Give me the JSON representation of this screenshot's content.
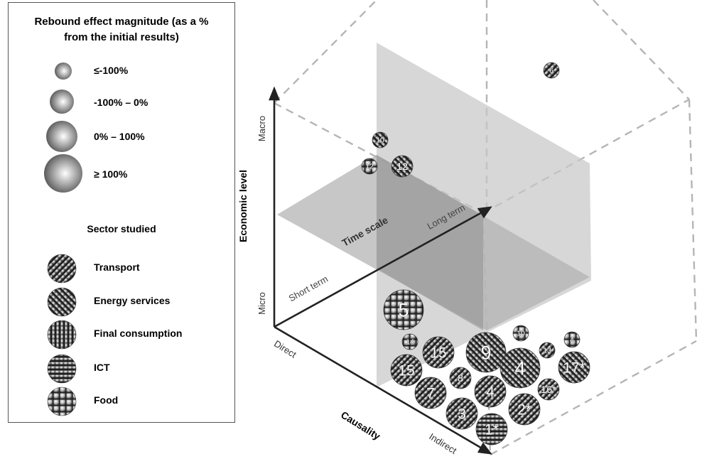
{
  "legend": {
    "title_line1": "Rebound effect  magnitude (as a %",
    "title_line2": "from the initial  results)",
    "magnitudes": [
      {
        "label": "≤-100%",
        "size": "xs"
      },
      {
        "label": "-100% – 0%",
        "size": "s"
      },
      {
        "label": "0% – 100%",
        "size": "m"
      },
      {
        "label": "≥ 100%",
        "size": "l"
      }
    ],
    "sector_title": "Sector studied",
    "sectors": [
      {
        "label": "Transport",
        "pattern": "diag-back"
      },
      {
        "label": "Energy services",
        "pattern": "diag-fwd"
      },
      {
        "label": "Final consumption",
        "pattern": "vertical"
      },
      {
        "label": "ICT",
        "pattern": "horizontal"
      },
      {
        "label": "Food",
        "pattern": "grid"
      }
    ]
  },
  "axes": {
    "economic_level": "Economic level",
    "macro": "Macro",
    "micro": "Micro",
    "causality": "Causality",
    "direct": "Direct",
    "indirect": "Indirect",
    "time_scale": "Time scale",
    "short_term": "Short term",
    "long_term": "Long term"
  },
  "bubbles": [
    {
      "label": "6",
      "pattern": "diag-back",
      "size": "xs"
    },
    {
      "label": "10",
      "pattern": "diag-fwd",
      "size": "xs"
    },
    {
      "label": "12",
      "pattern": "grid",
      "size": "xs"
    },
    {
      "label": "12",
      "pattern": "diag-fwd",
      "size": "s"
    },
    {
      "label": "5",
      "pattern": "grid",
      "size": "l"
    },
    {
      "label": "14",
      "pattern": "grid",
      "size": "xs"
    },
    {
      "label": "15",
      "pattern": "diag-back",
      "size": "m"
    },
    {
      "label": "15",
      "pattern": "diag-back",
      "size": "m"
    },
    {
      "label": "9",
      "pattern": "diag-fwd",
      "size": "l"
    },
    {
      "label": "8",
      "pattern": "diag-back",
      "size": "s"
    },
    {
      "label": "4",
      "pattern": "diag-fwd",
      "size": "l"
    },
    {
      "label": "4",
      "pattern": "diag-back",
      "size": "m"
    },
    {
      "label": "7",
      "pattern": "diag-back",
      "size": "m"
    },
    {
      "label": "3",
      "pattern": "diag-back",
      "size": "m"
    },
    {
      "label": "2*",
      "pattern": "diag-back",
      "size": "m"
    },
    {
      "label": "1*",
      "pattern": "horizontal",
      "size": "m"
    },
    {
      "label": "10",
      "pattern": "grid",
      "size": "xs"
    },
    {
      "label": "13",
      "pattern": "diag-back",
      "size": "xs"
    },
    {
      "label": "4",
      "pattern": "grid",
      "size": "xs"
    },
    {
      "label": "17*",
      "pattern": "diag-fwd",
      "size": "m"
    },
    {
      "label": "16*",
      "pattern": "diag-back",
      "size": "s"
    }
  ]
}
